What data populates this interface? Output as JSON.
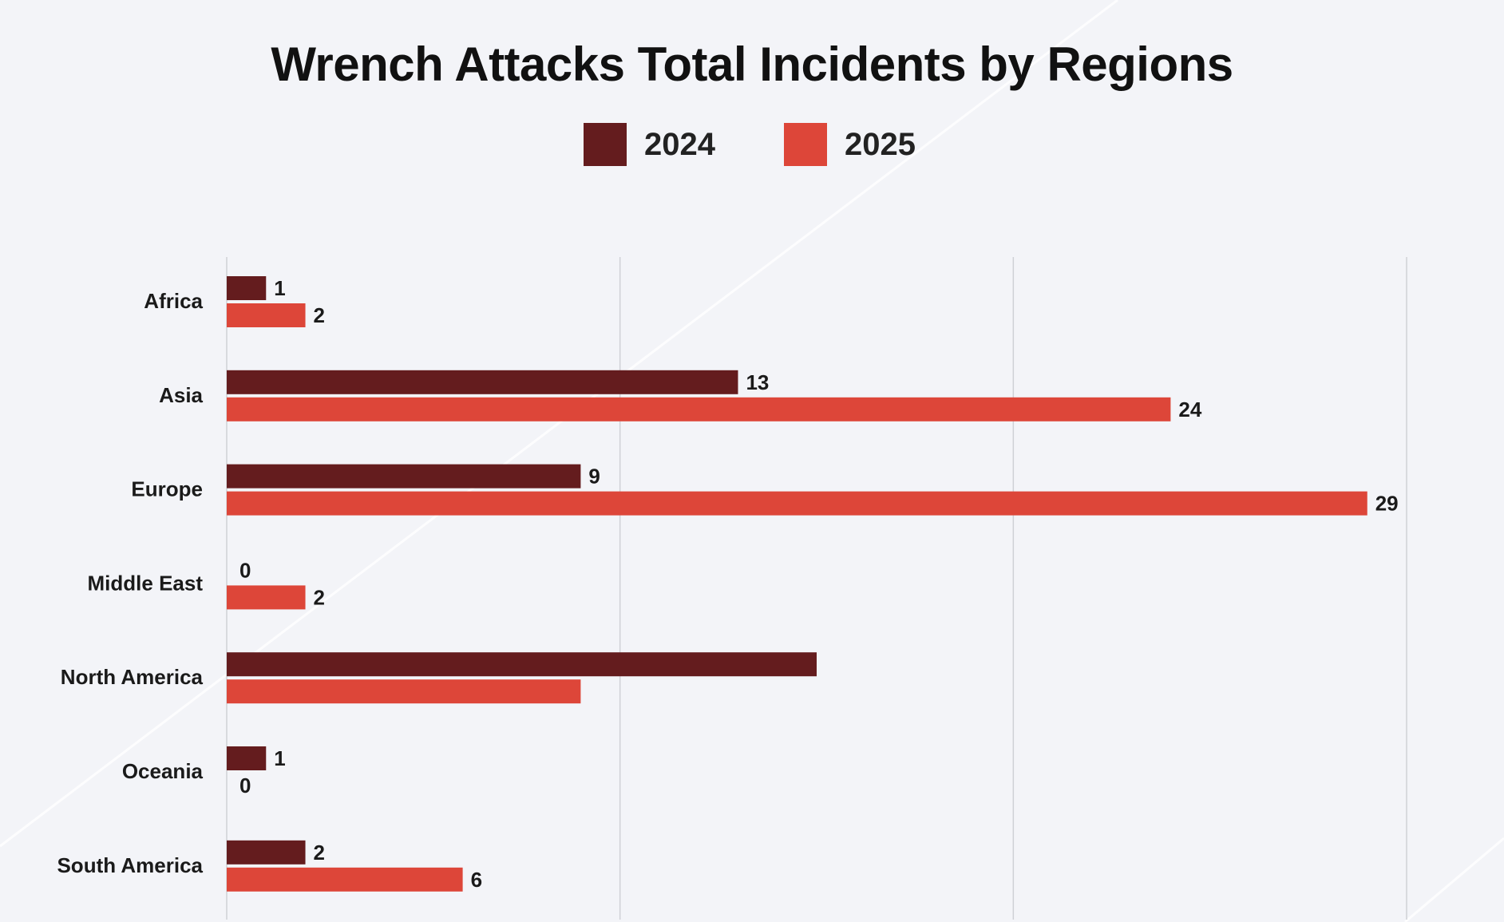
{
  "chart_data": {
    "type": "bar",
    "orientation": "horizontal",
    "title": "Wrench Attacks Total Incidents by Regions",
    "categories": [
      "Africa",
      "Asia",
      "Europe",
      "Middle East",
      "North America",
      "Oceania",
      "South America"
    ],
    "series": [
      {
        "name": "2024",
        "color": "#641c1e",
        "values": [
          1,
          13,
          9,
          0,
          15,
          1,
          2
        ],
        "labels": [
          "1",
          "13",
          "9",
          "0",
          "",
          "1",
          "2"
        ]
      },
      {
        "name": "2025",
        "color": "#dd4639",
        "values": [
          2,
          24,
          29,
          2,
          9,
          0,
          6
        ],
        "labels": [
          "2",
          "24",
          "29",
          "2",
          "",
          "0",
          "6"
        ]
      }
    ],
    "xlim": [
      0,
      30
    ],
    "x_gridlines": [
      0,
      10,
      20,
      30
    ],
    "x_tick_labels_shown": false,
    "grid": true,
    "legend": "top-center"
  }
}
